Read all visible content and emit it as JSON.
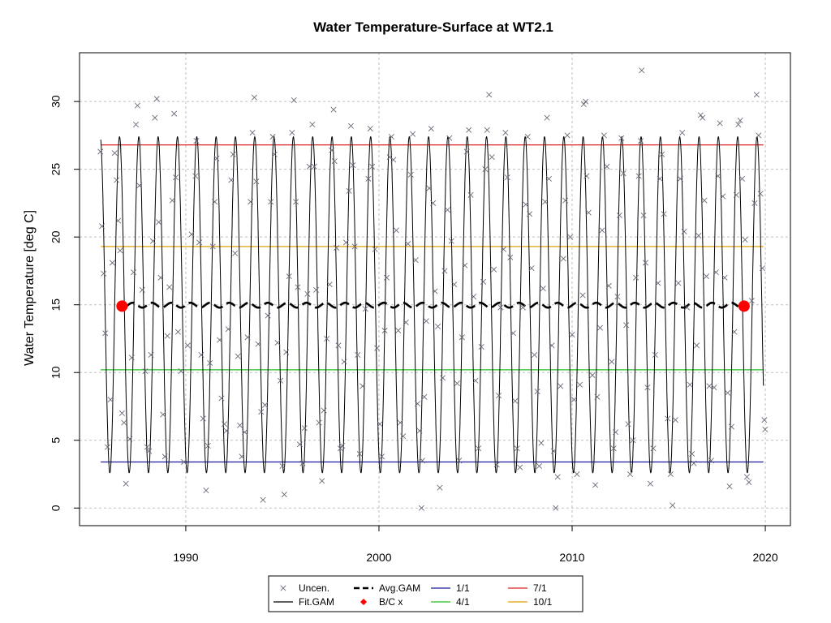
{
  "chart_data": {
    "type": "line",
    "title": "Water Temperature-Surface at WT2.1",
    "xlabel": "",
    "ylabel": "Water Temperature [deg C]",
    "xlim": [
      1984.5,
      2021.3
    ],
    "ylim": [
      -1.3,
      33.6
    ],
    "x_ticks": [
      1990,
      2000,
      2010,
      2020
    ],
    "y_ticks": [
      0,
      5,
      10,
      15,
      20,
      25,
      30
    ],
    "grid": true,
    "legend_position": "bottom",
    "colors": {
      "points": "#6b6b7b",
      "fit": "#000000",
      "avg": "#000000",
      "bc": "#ff0000",
      "jan": "#1a1aa0",
      "apr": "#22c022",
      "jul": "#dd2222",
      "oct": "#e0a000",
      "grid": "#bfbfbf"
    },
    "fit_gam": {
      "start": 1985.6,
      "end": 2019.9,
      "mean": 15.0,
      "amplitude": 12.4,
      "peak_offset": 0.57
    },
    "avg_gam": {
      "start": 1986.9,
      "end": 2018.6,
      "mean": 14.97,
      "amplitude": 0.18
    },
    "bc_points": [
      {
        "x": 1986.7,
        "y": 14.9
      },
      {
        "x": 2018.9,
        "y": 14.9
      }
    ],
    "reference_lines": [
      {
        "label": "1/1",
        "y": 3.4,
        "color": "#1a1aa0"
      },
      {
        "label": "4/1",
        "y": 10.2,
        "color": "#22c022"
      },
      {
        "label": "7/1",
        "y": 26.8,
        "color": "#dd2222"
      },
      {
        "label": "10/1",
        "y": 19.3,
        "color": "#e0a000"
      }
    ],
    "reference_x_range": [
      1985.6,
      2019.9
    ],
    "uncensored_points": [
      [
        1985.58,
        26.3
      ],
      [
        1985.66,
        20.8
      ],
      [
        1985.75,
        17.3
      ],
      [
        1985.83,
        12.9
      ],
      [
        1985.95,
        4.5
      ],
      [
        1986.1,
        8.0
      ],
      [
        1986.2,
        18.1
      ],
      [
        1986.32,
        26.2
      ],
      [
        1986.42,
        24.2
      ],
      [
        1986.5,
        21.2
      ],
      [
        1986.6,
        19.0
      ],
      [
        1986.7,
        7.0
      ],
      [
        1986.8,
        6.3
      ],
      [
        1986.9,
        1.8
      ],
      [
        1987.1,
        5.1
      ],
      [
        1987.2,
        11.1
      ],
      [
        1987.3,
        17.4
      ],
      [
        1987.42,
        28.3
      ],
      [
        1987.5,
        29.7
      ],
      [
        1987.6,
        23.8
      ],
      [
        1987.75,
        16.1
      ],
      [
        1987.9,
        10.1
      ],
      [
        1988.0,
        4.5
      ],
      [
        1988.1,
        4.2
      ],
      [
        1988.2,
        11.3
      ],
      [
        1988.3,
        19.7
      ],
      [
        1988.4,
        28.8
      ],
      [
        1988.5,
        30.2
      ],
      [
        1988.6,
        21.1
      ],
      [
        1988.7,
        17.0
      ],
      [
        1988.82,
        6.9
      ],
      [
        1988.92,
        3.8
      ],
      [
        1989.05,
        12.7
      ],
      [
        1989.15,
        16.3
      ],
      [
        1989.3,
        22.7
      ],
      [
        1989.4,
        29.1
      ],
      [
        1989.48,
        24.4
      ],
      [
        1989.6,
        13.0
      ],
      [
        1989.75,
        10.1
      ],
      [
        1989.9,
        3.4
      ],
      [
        1990.1,
        12.0
      ],
      [
        1990.3,
        20.2
      ],
      [
        1990.5,
        24.5
      ],
      [
        1990.55,
        27.1
      ],
      [
        1990.7,
        19.6
      ],
      [
        1990.8,
        11.3
      ],
      [
        1990.9,
        6.6
      ],
      [
        1991.05,
        1.3
      ],
      [
        1991.15,
        4.6
      ],
      [
        1991.25,
        10.7
      ],
      [
        1991.4,
        19.3
      ],
      [
        1991.5,
        22.6
      ],
      [
        1991.6,
        25.8
      ],
      [
        1991.75,
        12.4
      ],
      [
        1991.85,
        8.1
      ],
      [
        1992.0,
        6.2
      ],
      [
        1992.1,
        5.7
      ],
      [
        1992.2,
        13.2
      ],
      [
        1992.35,
        24.2
      ],
      [
        1992.45,
        26.1
      ],
      [
        1992.55,
        18.8
      ],
      [
        1992.7,
        11.2
      ],
      [
        1992.8,
        6.1
      ],
      [
        1992.9,
        3.8
      ],
      [
        1993.05,
        5.6
      ],
      [
        1993.2,
        12.6
      ],
      [
        1993.35,
        22.6
      ],
      [
        1993.45,
        27.7
      ],
      [
        1993.55,
        30.3
      ],
      [
        1993.65,
        24.1
      ],
      [
        1993.75,
        12.1
      ],
      [
        1993.9,
        7.1
      ],
      [
        1994.0,
        0.6
      ],
      [
        1994.1,
        7.6
      ],
      [
        1994.25,
        14.2
      ],
      [
        1994.4,
        22.6
      ],
      [
        1994.5,
        27.4
      ],
      [
        1994.6,
        26.1
      ],
      [
        1994.75,
        12.2
      ],
      [
        1994.9,
        9.4
      ],
      [
        1995.0,
        3.1
      ],
      [
        1995.1,
        1.0
      ],
      [
        1995.2,
        11.5
      ],
      [
        1995.35,
        17.1
      ],
      [
        1995.5,
        27.7
      ],
      [
        1995.6,
        30.1
      ],
      [
        1995.7,
        22.6
      ],
      [
        1995.8,
        16.3
      ],
      [
        1995.9,
        4.7
      ],
      [
        1996.05,
        3.3
      ],
      [
        1996.15,
        5.9
      ],
      [
        1996.3,
        15.8
      ],
      [
        1996.4,
        25.2
      ],
      [
        1996.55,
        28.3
      ],
      [
        1996.65,
        25.2
      ],
      [
        1996.75,
        16.1
      ],
      [
        1996.9,
        6.3
      ],
      [
        1997.05,
        2.0
      ],
      [
        1997.15,
        7.2
      ],
      [
        1997.3,
        12.5
      ],
      [
        1997.45,
        16.5
      ],
      [
        1997.55,
        26.4
      ],
      [
        1997.65,
        29.4
      ],
      [
        1997.7,
        25.6
      ],
      [
        1997.8,
        19.2
      ],
      [
        1997.9,
        12.0
      ],
      [
        1998.0,
        4.4
      ],
      [
        1998.1,
        4.6
      ],
      [
        1998.2,
        10.8
      ],
      [
        1998.3,
        19.6
      ],
      [
        1998.45,
        23.4
      ],
      [
        1998.55,
        28.2
      ],
      [
        1998.65,
        25.3
      ],
      [
        1998.75,
        19.3
      ],
      [
        1998.9,
        11.3
      ],
      [
        1999.0,
        4.0
      ],
      [
        1999.15,
        9.0
      ],
      [
        1999.3,
        14.7
      ],
      [
        1999.45,
        24.3
      ],
      [
        1999.55,
        28.0
      ],
      [
        1999.65,
        25.2
      ],
      [
        1999.8,
        19.1
      ],
      [
        1999.9,
        11.8
      ],
      [
        2000.05,
        6.2
      ],
      [
        2000.15,
        3.8
      ],
      [
        2000.3,
        13.1
      ],
      [
        2000.4,
        17.0
      ],
      [
        2000.55,
        25.9
      ],
      [
        2000.65,
        27.4
      ],
      [
        2000.75,
        25.7
      ],
      [
        2000.9,
        20.5
      ],
      [
        2001.0,
        13.1
      ],
      [
        2001.1,
        6.3
      ],
      [
        2001.25,
        5.3
      ],
      [
        2001.4,
        13.7
      ],
      [
        2001.5,
        19.5
      ],
      [
        2001.65,
        24.6
      ],
      [
        2001.75,
        27.6
      ],
      [
        2001.9,
        18.3
      ],
      [
        2002.0,
        7.7
      ],
      [
        2002.1,
        5.7
      ],
      [
        2002.2,
        0.0
      ],
      [
        2002.25,
        3.5
      ],
      [
        2002.35,
        8.2
      ],
      [
        2002.45,
        13.8
      ],
      [
        2002.6,
        23.6
      ],
      [
        2002.7,
        28.0
      ],
      [
        2002.8,
        22.5
      ],
      [
        2002.9,
        16.0
      ],
      [
        2003.05,
        13.4
      ],
      [
        2003.15,
        1.5
      ],
      [
        2003.3,
        9.6
      ],
      [
        2003.4,
        17.5
      ],
      [
        2003.55,
        22.0
      ],
      [
        2003.65,
        27.3
      ],
      [
        2003.75,
        19.7
      ],
      [
        2003.9,
        16.5
      ],
      [
        2004.05,
        9.2
      ],
      [
        2004.15,
        3.5
      ],
      [
        2004.3,
        12.6
      ],
      [
        2004.45,
        17.9
      ],
      [
        2004.55,
        26.3
      ],
      [
        2004.65,
        27.9
      ],
      [
        2004.75,
        23.1
      ],
      [
        2004.9,
        15.6
      ],
      [
        2005.0,
        9.4
      ],
      [
        2005.15,
        4.4
      ],
      [
        2005.3,
        11.9
      ],
      [
        2005.4,
        16.7
      ],
      [
        2005.5,
        25.0
      ],
      [
        2005.6,
        27.9
      ],
      [
        2005.7,
        30.5
      ],
      [
        2005.85,
        25.9
      ],
      [
        2005.95,
        17.6
      ],
      [
        2006.1,
        3.2
      ],
      [
        2006.2,
        8.3
      ],
      [
        2006.3,
        14.8
      ],
      [
        2006.45,
        19.1
      ],
      [
        2006.55,
        27.7
      ],
      [
        2006.65,
        24.4
      ],
      [
        2006.8,
        18.5
      ],
      [
        2006.95,
        12.9
      ],
      [
        2007.05,
        7.9
      ],
      [
        2007.15,
        4.4
      ],
      [
        2007.3,
        3.0
      ],
      [
        2007.45,
        14.8
      ],
      [
        2007.6,
        22.4
      ],
      [
        2007.7,
        27.4
      ],
      [
        2007.8,
        21.7
      ],
      [
        2007.9,
        17.7
      ],
      [
        2008.05,
        11.3
      ],
      [
        2008.2,
        8.6
      ],
      [
        2008.3,
        3.1
      ],
      [
        2008.4,
        4.8
      ],
      [
        2008.5,
        16.2
      ],
      [
        2008.6,
        22.6
      ],
      [
        2008.7,
        28.8
      ],
      [
        2008.8,
        24.3
      ],
      [
        2008.95,
        12.0
      ],
      [
        2009.05,
        4.2
      ],
      [
        2009.15,
        0.0
      ],
      [
        2009.25,
        2.3
      ],
      [
        2009.4,
        9.0
      ],
      [
        2009.55,
        18.4
      ],
      [
        2009.65,
        22.7
      ],
      [
        2009.75,
        27.5
      ],
      [
        2009.9,
        20.0
      ],
      [
        2010.0,
        12.8
      ],
      [
        2010.1,
        8.0
      ],
      [
        2010.25,
        2.5
      ],
      [
        2010.4,
        9.1
      ],
      [
        2010.55,
        15.7
      ],
      [
        2010.6,
        29.8
      ],
      [
        2010.7,
        30.0
      ],
      [
        2010.75,
        24.5
      ],
      [
        2010.85,
        21.8
      ],
      [
        2011.05,
        9.8
      ],
      [
        2011.2,
        1.7
      ],
      [
        2011.3,
        8.2
      ],
      [
        2011.45,
        13.3
      ],
      [
        2011.55,
        20.5
      ],
      [
        2011.65,
        27.5
      ],
      [
        2011.8,
        25.2
      ],
      [
        2011.9,
        16.4
      ],
      [
        2012.05,
        10.8
      ],
      [
        2012.15,
        4.4
      ],
      [
        2012.25,
        5.6
      ],
      [
        2012.35,
        15.6
      ],
      [
        2012.45,
        21.6
      ],
      [
        2012.55,
        27.3
      ],
      [
        2012.65,
        24.7
      ],
      [
        2012.8,
        13.5
      ],
      [
        2012.9,
        6.2
      ],
      [
        2013.0,
        2.5
      ],
      [
        2013.15,
        5.0
      ],
      [
        2013.3,
        17.0
      ],
      [
        2013.45,
        24.5
      ],
      [
        2013.55,
        27.1
      ],
      [
        2013.6,
        32.3
      ],
      [
        2013.7,
        21.6
      ],
      [
        2013.8,
        18.1
      ],
      [
        2013.9,
        8.9
      ],
      [
        2014.05,
        1.8
      ],
      [
        2014.2,
        4.4
      ],
      [
        2014.3,
        11.3
      ],
      [
        2014.45,
        16.6
      ],
      [
        2014.55,
        24.3
      ],
      [
        2014.65,
        26.1
      ],
      [
        2014.75,
        21.7
      ],
      [
        2014.95,
        6.6
      ],
      [
        2015.1,
        2.5
      ],
      [
        2015.2,
        0.2
      ],
      [
        2015.35,
        6.5
      ],
      [
        2015.5,
        16.6
      ],
      [
        2015.6,
        24.3
      ],
      [
        2015.7,
        27.7
      ],
      [
        2015.8,
        20.4
      ],
      [
        2015.95,
        14.8
      ],
      [
        2016.1,
        9.1
      ],
      [
        2016.2,
        4.0
      ],
      [
        2016.3,
        3.3
      ],
      [
        2016.45,
        12.0
      ],
      [
        2016.55,
        20.1
      ],
      [
        2016.65,
        29.0
      ],
      [
        2016.75,
        28.8
      ],
      [
        2016.85,
        22.7
      ],
      [
        2016.95,
        17.1
      ],
      [
        2017.1,
        9.0
      ],
      [
        2017.2,
        3.5
      ],
      [
        2017.35,
        8.9
      ],
      [
        2017.45,
        17.4
      ],
      [
        2017.55,
        24.5
      ],
      [
        2017.65,
        28.4
      ],
      [
        2017.8,
        23.0
      ],
      [
        2017.9,
        17.0
      ],
      [
        2018.05,
        8.5
      ],
      [
        2018.15,
        1.6
      ],
      [
        2018.25,
        6.0
      ],
      [
        2018.4,
        13.0
      ],
      [
        2018.5,
        23.1
      ],
      [
        2018.6,
        28.3
      ],
      [
        2018.7,
        28.6
      ],
      [
        2018.8,
        24.3
      ],
      [
        2018.95,
        19.8
      ],
      [
        2019.05,
        2.3
      ],
      [
        2019.15,
        1.9
      ],
      [
        2019.3,
        15.3
      ],
      [
        2019.45,
        22.5
      ],
      [
        2019.55,
        30.5
      ],
      [
        2019.65,
        27.5
      ],
      [
        2019.75,
        23.2
      ],
      [
        2019.85,
        17.7
      ],
      [
        2019.95,
        6.5
      ],
      [
        2019.99,
        5.8
      ]
    ]
  },
  "legend": {
    "items": [
      {
        "key": "points",
        "label": "Uncen."
      },
      {
        "key": "fit",
        "label": "Fit.GAM"
      },
      {
        "key": "avg",
        "label": "Avg.GAM"
      },
      {
        "key": "bc",
        "label": "B/C x"
      },
      {
        "key": "jan",
        "label": "1/1"
      },
      {
        "key": "apr",
        "label": "4/1"
      },
      {
        "key": "jul",
        "label": "7/1"
      },
      {
        "key": "oct",
        "label": "10/1"
      }
    ]
  }
}
